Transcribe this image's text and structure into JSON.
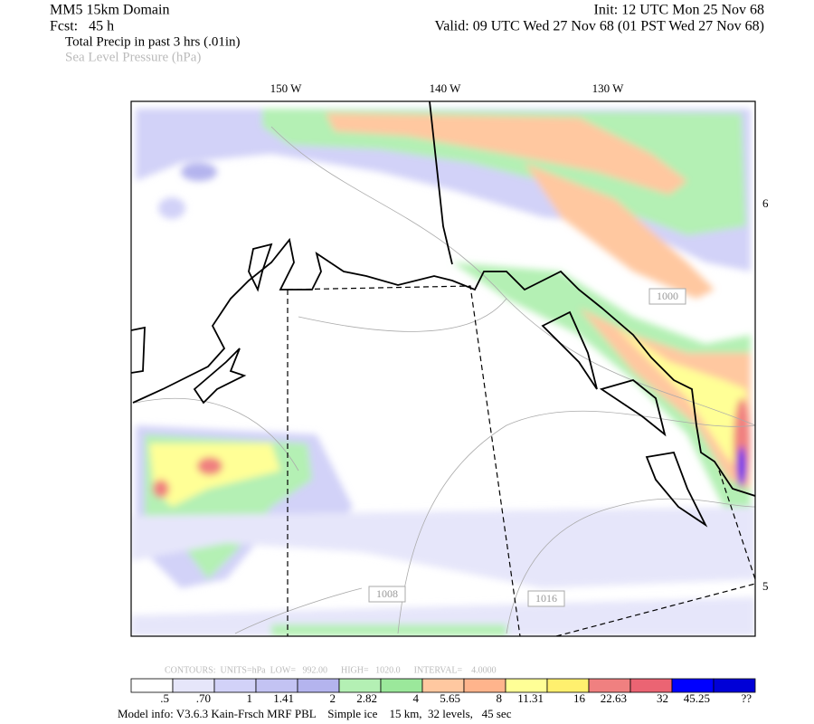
{
  "header": {
    "domain": "MM5 15km Domain",
    "forecast": "Fcst:   45 h",
    "init": "Init: 12 UTC Mon 25 Nov 68",
    "valid": "Valid: 09 UTC Wed 27 Nov 68 (01 PST Wed 27 Nov 68)",
    "field_1": "Total Precip in past 3 hrs (.01in)",
    "field_2": "Sea Level Pressure (hPa)"
  },
  "map": {
    "longitude_labels": [
      "150 W",
      "140 W",
      "130 W"
    ],
    "latitude_labels": [
      "6",
      "5"
    ],
    "contour_labels": [
      "1000",
      "1008",
      "1016"
    ]
  },
  "contour_info": "CONTOURS:  UNITS=hPa  LOW=   992.00      HIGH=   1020.0      INTERVAL=    4.0000",
  "colorbar": {
    "colors": [
      "#ffffff",
      "#e6e6fa",
      "#d2d2f8",
      "#c3c3f3",
      "#b4b4ee",
      "#b4f0b4",
      "#9be89b",
      "#ffc8a0",
      "#ffb48c",
      "#ffff96",
      "#fff06e",
      "#f08080",
      "#eb6473",
      "#0000ff",
      "#0000d7"
    ],
    "labels": [
      ".5",
      ".70",
      "1",
      "1.41",
      "2",
      "2.82",
      "4",
      "5.65",
      "8",
      "11.31",
      "16",
      "22.63",
      "32",
      "45.25",
      "??"
    ]
  },
  "footer": "Model info: V3.6.3 Kain-Frsch MRF PBL    Simple ice    15 km,  32 levels,   45 sec"
}
